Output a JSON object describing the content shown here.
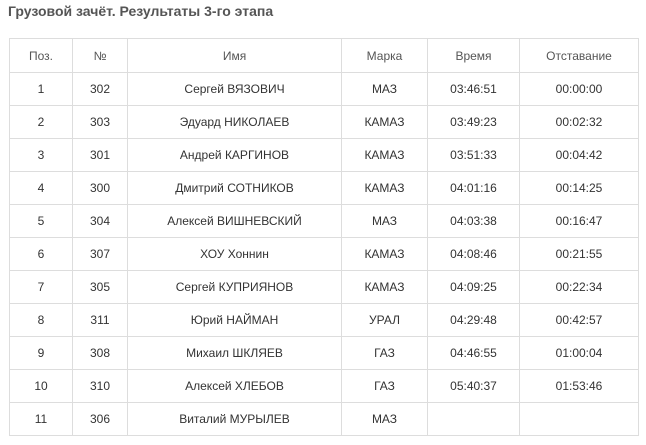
{
  "title": "Грузовой зачёт. Результаты 3-го этапа",
  "table": {
    "header": [
      "Поз.",
      "№",
      "Имя",
      "Марка",
      "Время",
      "Отставание"
    ],
    "rows": [
      [
        "1",
        "302",
        "Сергей ВЯЗОВИЧ",
        "МАЗ",
        "03:46:51",
        "00:00:00"
      ],
      [
        "2",
        "303",
        "Эдуард НИКОЛАЕВ",
        "КАМАЗ",
        "03:49:23",
        "00:02:32"
      ],
      [
        "3",
        "301",
        "Андрей КАРГИНОВ",
        "КАМАЗ",
        "03:51:33",
        "00:04:42"
      ],
      [
        "4",
        "300",
        "Дмитрий СОТНИКОВ",
        "КАМАЗ",
        "04:01:16",
        "00:14:25"
      ],
      [
        "5",
        "304",
        "Алексей ВИШНЕВСКИЙ",
        "МАЗ",
        "04:03:38",
        "00:16:47"
      ],
      [
        "6",
        "307",
        "ХОУ Хоннин",
        "КАМАЗ",
        "04:08:46",
        "00:21:55"
      ],
      [
        "7",
        "305",
        "Сергей КУПРИЯНОВ",
        "КАМАЗ",
        "04:09:25",
        "00:22:34"
      ],
      [
        "8",
        "311",
        "Юрий НАЙМАН",
        "УРАЛ",
        "04:29:48",
        "00:42:57"
      ],
      [
        "9",
        "308",
        "Михаил ШКЛЯЕВ",
        "ГАЗ",
        "04:46:55",
        "01:00:04"
      ],
      [
        "10",
        "310",
        "Алексей ХЛЕБОВ",
        "ГАЗ",
        "05:40:37",
        "01:53:46"
      ],
      [
        "11",
        "306",
        "Виталий МУРЫЛЕВ",
        "МАЗ"
      ]
    ]
  }
}
